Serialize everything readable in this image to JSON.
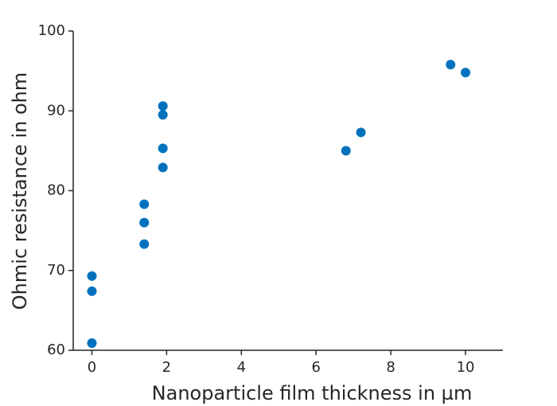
{
  "chart_data": {
    "type": "scatter",
    "x_label": "Nanoparticle film thickness in µm",
    "y_label": "Ohmic resistance in ohm",
    "series": [
      {
        "color": "#0072bd",
        "x": [
          0,
          0,
          0,
          1.4,
          1.4,
          1.4,
          1.9,
          1.9,
          1.9,
          1.9,
          6.8,
          7.2,
          9.6,
          10
        ],
        "values": [
          69.3,
          67.4,
          60.9,
          78.3,
          76.0,
          73.3,
          90.6,
          89.5,
          85.3,
          82.9,
          85.0,
          87.3,
          95.8,
          94.8
        ]
      }
    ],
    "xlim": [
      -0.5,
      11
    ],
    "xticks": [
      0,
      2,
      4,
      6,
      8,
      10
    ],
    "ylim": [
      60,
      100
    ],
    "yticks": [
      60,
      70,
      80,
      90,
      100
    ],
    "grid": false
  }
}
